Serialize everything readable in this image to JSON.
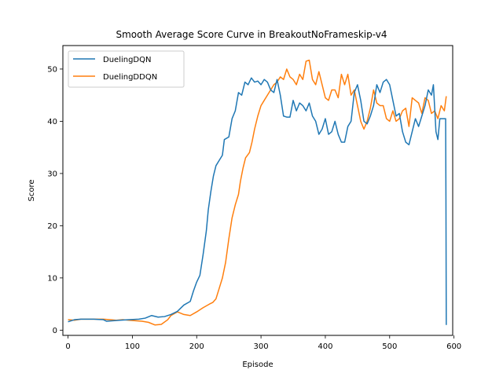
{
  "chart_data": {
    "type": "line",
    "title": "Smooth Average Score Curve in BreakoutNoFrameskip-v4",
    "xlabel": "Episode",
    "ylabel": "Score",
    "xlim": [
      -8,
      598
    ],
    "ylim": [
      -1,
      54.5
    ],
    "xticks": [
      0,
      100,
      200,
      300,
      400,
      500,
      600
    ],
    "yticks": [
      0,
      10,
      20,
      30,
      40,
      50
    ],
    "grid": false,
    "legend_position": "top-left",
    "series": [
      {
        "name": "DuelingDQN",
        "color": "#1f77b4",
        "points": [
          [
            0,
            1.6
          ],
          [
            10,
            2.0
          ],
          [
            20,
            2.1
          ],
          [
            40,
            2.1
          ],
          [
            55,
            2.0
          ],
          [
            60,
            1.7
          ],
          [
            70,
            1.8
          ],
          [
            80,
            1.9
          ],
          [
            95,
            2.0
          ],
          [
            110,
            2.1
          ],
          [
            120,
            2.3
          ],
          [
            130,
            2.8
          ],
          [
            140,
            2.5
          ],
          [
            150,
            2.6
          ],
          [
            160,
            3.0
          ],
          [
            170,
            3.6
          ],
          [
            180,
            4.8
          ],
          [
            190,
            5.5
          ],
          [
            195,
            7.5
          ],
          [
            200,
            9.2
          ],
          [
            205,
            10.5
          ],
          [
            210,
            14.5
          ],
          [
            215,
            19.0
          ],
          [
            218,
            23.0
          ],
          [
            222,
            26.5
          ],
          [
            226,
            29.5
          ],
          [
            230,
            31.5
          ],
          [
            235,
            32.5
          ],
          [
            240,
            33.5
          ],
          [
            243,
            36.5
          ],
          [
            250,
            37.0
          ],
          [
            255,
            40.5
          ],
          [
            260,
            42.0
          ],
          [
            265,
            45.5
          ],
          [
            270,
            45.0
          ],
          [
            275,
            47.5
          ],
          [
            280,
            47.0
          ],
          [
            285,
            48.3
          ],
          [
            290,
            47.5
          ],
          [
            295,
            47.7
          ],
          [
            300,
            47.0
          ],
          [
            305,
            48.0
          ],
          [
            310,
            47.5
          ],
          [
            315,
            46.0
          ],
          [
            320,
            45.5
          ],
          [
            325,
            48.0
          ],
          [
            330,
            45.0
          ],
          [
            335,
            41.0
          ],
          [
            340,
            40.8
          ],
          [
            345,
            40.8
          ],
          [
            350,
            44.0
          ],
          [
            355,
            42.0
          ],
          [
            360,
            43.5
          ],
          [
            365,
            43.0
          ],
          [
            370,
            42.0
          ],
          [
            375,
            43.5
          ],
          [
            380,
            41.0
          ],
          [
            385,
            40.0
          ],
          [
            390,
            37.5
          ],
          [
            395,
            38.5
          ],
          [
            400,
            40.5
          ],
          [
            405,
            37.5
          ],
          [
            410,
            38.0
          ],
          [
            415,
            40.0
          ],
          [
            420,
            37.5
          ],
          [
            425,
            36.0
          ],
          [
            430,
            36.0
          ],
          [
            435,
            39.0
          ],
          [
            440,
            40.0
          ],
          [
            445,
            45.5
          ],
          [
            450,
            47.0
          ],
          [
            455,
            44.0
          ],
          [
            460,
            40.0
          ],
          [
            465,
            39.5
          ],
          [
            470,
            41.0
          ],
          [
            475,
            43.0
          ],
          [
            480,
            47.0
          ],
          [
            485,
            45.5
          ],
          [
            490,
            47.5
          ],
          [
            495,
            48.0
          ],
          [
            500,
            47.0
          ],
          [
            505,
            44.0
          ],
          [
            510,
            41.0
          ],
          [
            515,
            41.5
          ],
          [
            520,
            38.0
          ],
          [
            525,
            36.0
          ],
          [
            530,
            35.5
          ],
          [
            535,
            38.0
          ],
          [
            540,
            40.5
          ],
          [
            545,
            39.0
          ],
          [
            550,
            41.0
          ],
          [
            555,
            43.0
          ],
          [
            560,
            46.0
          ],
          [
            565,
            45.0
          ],
          [
            568,
            47.0
          ],
          [
            572,
            38.0
          ],
          [
            575,
            36.5
          ],
          [
            578,
            40.5
          ],
          [
            585,
            40.5
          ],
          [
            587,
            40.5
          ],
          [
            587.5,
            25.0
          ],
          [
            588,
            1.0
          ]
        ]
      },
      {
        "name": "DuelingDDQN",
        "color": "#ff7f0e",
        "points": [
          [
            0,
            2.0
          ],
          [
            10,
            1.9
          ],
          [
            20,
            2.1
          ],
          [
            40,
            2.1
          ],
          [
            55,
            2.1
          ],
          [
            65,
            2.0
          ],
          [
            75,
            1.9
          ],
          [
            85,
            2.0
          ],
          [
            95,
            1.9
          ],
          [
            105,
            1.8
          ],
          [
            115,
            1.7
          ],
          [
            125,
            1.5
          ],
          [
            135,
            1.0
          ],
          [
            145,
            1.1
          ],
          [
            155,
            2.0
          ],
          [
            160,
            2.8
          ],
          [
            170,
            3.5
          ],
          [
            180,
            3.0
          ],
          [
            190,
            2.8
          ],
          [
            200,
            3.5
          ],
          [
            210,
            4.3
          ],
          [
            220,
            5.0
          ],
          [
            225,
            5.3
          ],
          [
            230,
            6.0
          ],
          [
            235,
            8.0
          ],
          [
            240,
            10.0
          ],
          [
            245,
            13.0
          ],
          [
            250,
            17.5
          ],
          [
            255,
            21.5
          ],
          [
            260,
            24.0
          ],
          [
            265,
            26.0
          ],
          [
            268,
            28.5
          ],
          [
            272,
            31.0
          ],
          [
            276,
            33.0
          ],
          [
            282,
            34.0
          ],
          [
            286,
            36.0
          ],
          [
            290,
            38.5
          ],
          [
            295,
            41.0
          ],
          [
            300,
            43.0
          ],
          [
            305,
            44.0
          ],
          [
            310,
            45.0
          ],
          [
            315,
            46.0
          ],
          [
            320,
            47.0
          ],
          [
            325,
            47.5
          ],
          [
            330,
            48.5
          ],
          [
            335,
            48.0
          ],
          [
            340,
            50.0
          ],
          [
            345,
            48.5
          ],
          [
            350,
            48.0
          ],
          [
            355,
            47.0
          ],
          [
            360,
            49.0
          ],
          [
            365,
            48.0
          ],
          [
            370,
            51.5
          ],
          [
            375,
            51.7
          ],
          [
            380,
            48.0
          ],
          [
            385,
            47.0
          ],
          [
            390,
            49.5
          ],
          [
            395,
            47.0
          ],
          [
            400,
            44.5
          ],
          [
            405,
            44.0
          ],
          [
            410,
            46.0
          ],
          [
            415,
            46.0
          ],
          [
            420,
            44.5
          ],
          [
            425,
            49.0
          ],
          [
            430,
            47.0
          ],
          [
            435,
            49.0
          ],
          [
            440,
            45.0
          ],
          [
            445,
            46.0
          ],
          [
            450,
            43.0
          ],
          [
            455,
            40.0
          ],
          [
            460,
            38.5
          ],
          [
            465,
            40.0
          ],
          [
            470,
            42.5
          ],
          [
            475,
            46.0
          ],
          [
            480,
            43.5
          ],
          [
            485,
            43.0
          ],
          [
            490,
            43.0
          ],
          [
            495,
            40.5
          ],
          [
            500,
            40.0
          ],
          [
            505,
            42.0
          ],
          [
            510,
            40.0
          ],
          [
            515,
            40.5
          ],
          [
            520,
            42.0
          ],
          [
            525,
            42.5
          ],
          [
            530,
            39.0
          ],
          [
            535,
            44.5
          ],
          [
            540,
            44.0
          ],
          [
            545,
            43.5
          ],
          [
            550,
            41.5
          ],
          [
            555,
            44.5
          ],
          [
            560,
            44.0
          ],
          [
            565,
            41.5
          ],
          [
            570,
            42.0
          ],
          [
            575,
            40.5
          ],
          [
            580,
            43.0
          ],
          [
            585,
            42.0
          ],
          [
            588,
            44.8
          ]
        ]
      }
    ]
  }
}
